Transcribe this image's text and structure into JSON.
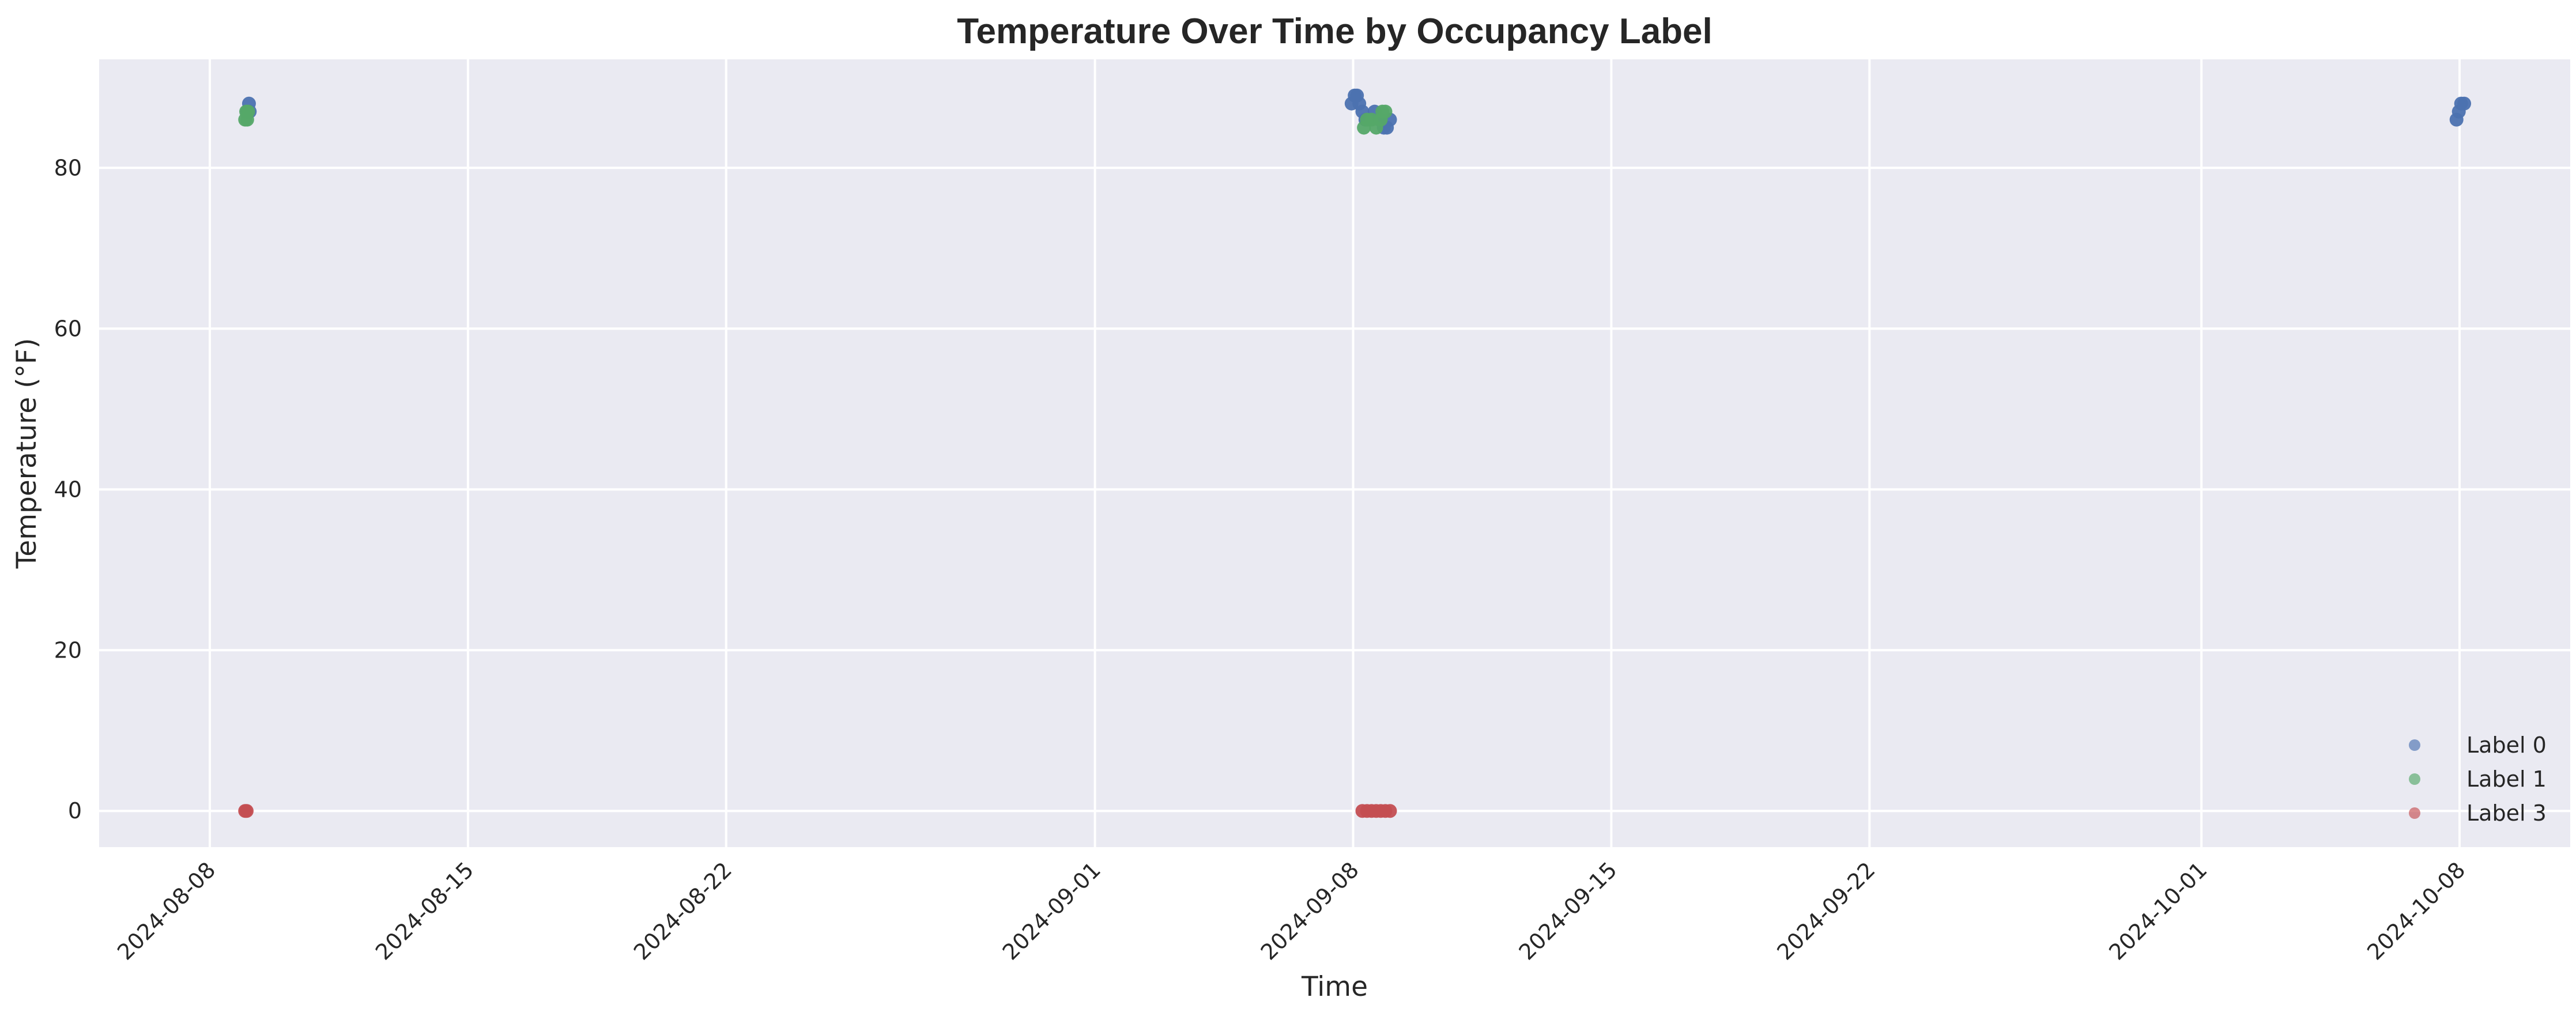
{
  "chart_data": {
    "type": "scatter",
    "title": "Temperature Over Time by Occupancy Label",
    "xlabel": "Time",
    "ylabel": "Temperature (°F)",
    "x_axis_type": "date",
    "xlim": [
      "2024-08-05 00:00",
      "2024-10-11 00:00"
    ],
    "ylim": [
      -4.5,
      93.5
    ],
    "x_ticks": [
      "2024-08-08",
      "2024-08-15",
      "2024-08-22",
      "2024-09-01",
      "2024-09-08",
      "2024-09-15",
      "2024-09-22",
      "2024-10-01",
      "2024-10-08"
    ],
    "y_ticks": [
      0,
      20,
      40,
      60,
      80
    ],
    "grid": true,
    "legend_position": "bottom-right",
    "series": [
      {
        "name": "Label 0",
        "color": "#4c72b0",
        "points": [
          {
            "x": "2024-08-09 00:30",
            "y": 87
          },
          {
            "x": "2024-08-09 01:30",
            "y": 88
          },
          {
            "x": "2024-08-09 02:00",
            "y": 87
          },
          {
            "x": "2024-09-07 23:00",
            "y": 88
          },
          {
            "x": "2024-09-08 01:00",
            "y": 89
          },
          {
            "x": "2024-09-08 02:30",
            "y": 89
          },
          {
            "x": "2024-09-08 04:00",
            "y": 88
          },
          {
            "x": "2024-09-08 06:00",
            "y": 87
          },
          {
            "x": "2024-09-08 08:00",
            "y": 86
          },
          {
            "x": "2024-09-08 11:00",
            "y": 86
          },
          {
            "x": "2024-09-08 14:00",
            "y": 87
          },
          {
            "x": "2024-09-08 17:00",
            "y": 86
          },
          {
            "x": "2024-09-08 20:00",
            "y": 85
          },
          {
            "x": "2024-09-08 22:00",
            "y": 85
          },
          {
            "x": "2024-09-09 00:00",
            "y": 86
          },
          {
            "x": "2024-10-07 22:00",
            "y": 86
          },
          {
            "x": "2024-10-07 23:30",
            "y": 87
          },
          {
            "x": "2024-10-08 01:00",
            "y": 88
          },
          {
            "x": "2024-10-08 03:00",
            "y": 88
          }
        ]
      },
      {
        "name": "Label 1",
        "color": "#55a868",
        "points": [
          {
            "x": "2024-08-08 23:00",
            "y": 86
          },
          {
            "x": "2024-08-08 23:40",
            "y": 87
          },
          {
            "x": "2024-08-09 00:20",
            "y": 86
          },
          {
            "x": "2024-08-09 01:00",
            "y": 87
          },
          {
            "x": "2024-09-08 07:00",
            "y": 85
          },
          {
            "x": "2024-09-08 09:00",
            "y": 86
          },
          {
            "x": "2024-09-08 12:00",
            "y": 86
          },
          {
            "x": "2024-09-08 15:00",
            "y": 85
          },
          {
            "x": "2024-09-08 18:00",
            "y": 86
          },
          {
            "x": "2024-09-08 19:00",
            "y": 87
          },
          {
            "x": "2024-09-08 21:00",
            "y": 87
          }
        ]
      },
      {
        "name": "Label 3",
        "color": "#c44e52",
        "points": [
          {
            "x": "2024-08-08 23:00",
            "y": 0
          },
          {
            "x": "2024-08-09 00:00",
            "y": 0
          },
          {
            "x": "2024-09-08 06:00",
            "y": 0
          },
          {
            "x": "2024-09-08 09:00",
            "y": 0
          },
          {
            "x": "2024-09-08 12:00",
            "y": 0
          },
          {
            "x": "2024-09-08 15:00",
            "y": 0
          },
          {
            "x": "2024-09-08 18:00",
            "y": 0
          },
          {
            "x": "2024-09-08 21:00",
            "y": 0
          },
          {
            "x": "2024-09-09 00:00",
            "y": 0
          }
        ]
      }
    ]
  }
}
